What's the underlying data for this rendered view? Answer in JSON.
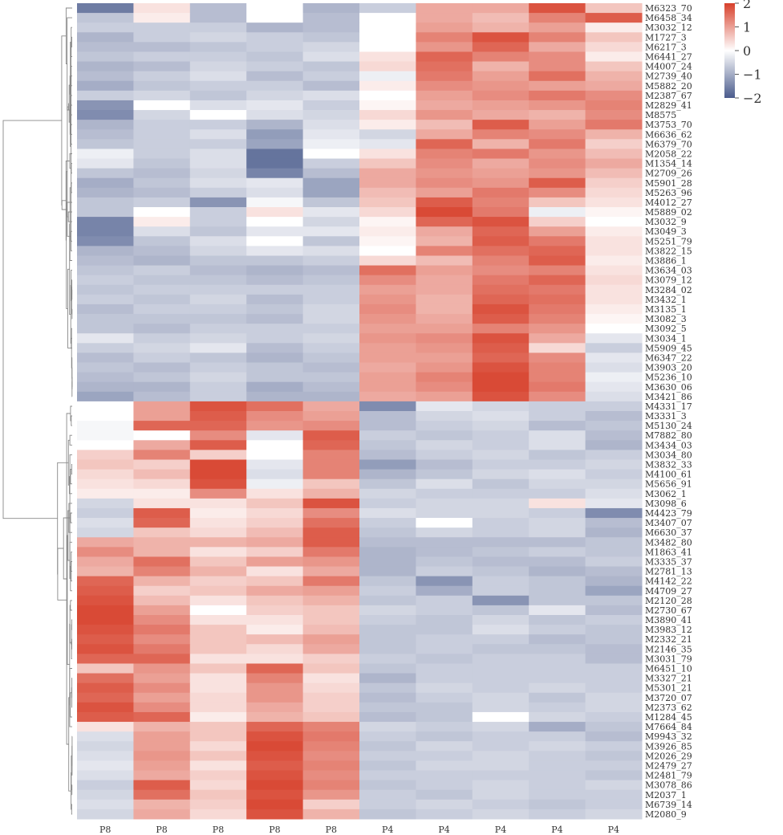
{
  "chart_data": {
    "type": "heatmap",
    "title": "",
    "columns": [
      "P8",
      "P8",
      "P8",
      "P8",
      "P8",
      "P4",
      "P4",
      "P4",
      "P4",
      "P4"
    ],
    "rows": [
      "M6323_70",
      "M6458_34",
      "M3032_12",
      "M1727_3",
      "M6217_3",
      "M6441_27",
      "M4007_24",
      "M2739_40",
      "M5882_20",
      "M2387_67",
      "M2829_41",
      "M8575",
      "M3753_70",
      "M6636_62",
      "M6379_70",
      "M2058_22",
      "M1354_14",
      "M2709_26",
      "M5901_28",
      "M5263_96",
      "M4012_27",
      "M5889_02",
      "M3032_9",
      "M3049_3",
      "M5251_79",
      "M3822_15",
      "M3886_1",
      "M3634_03",
      "M3079_12",
      "M3284_02",
      "M3432_1",
      "M3135_1",
      "M3082_3",
      "M3092_5",
      "M3034_1",
      "M5909_45",
      "M6347_22",
      "M3903_20",
      "M5236_10",
      "M3630_06",
      "M3421_86",
      "M4331_17",
      "M3331_3",
      "M5130_24",
      "M7882_80",
      "M3434_03",
      "M3034_80",
      "M3832_33",
      "M4100_61",
      "M5656_91",
      "M3062_1",
      "M3098_6",
      "M4423_79",
      "M3407_07",
      "M6630_37",
      "M3482_80",
      "M1863_41",
      "M3335_37",
      "M2781_13",
      "M4142_22",
      "M4709_27",
      "M2120_28",
      "M2730_67",
      "M3890_41",
      "M3983_12",
      "M2332_21",
      "M2146_35",
      "M3031_79",
      "M6451_10",
      "M3327_21",
      "M5301_21",
      "M3720_07",
      "M2373_62",
      "M1284_45",
      "M7664_84",
      "M9943_32",
      "M3926_85",
      "M2026_29",
      "M2479_27",
      "M2481_79",
      "M3078_86",
      "M2037_1",
      "M6739_14",
      "M2080_9"
    ],
    "values": [
      [
        -1.6,
        0.3,
        -0.8,
        0.0,
        -0.9,
        -0.6,
        0.9,
        0.9,
        1.8,
        0.6
      ],
      [
        -0.7,
        0.2,
        -0.8,
        0.0,
        -0.8,
        0.0,
        0.9,
        0.7,
        1.3,
        1.7
      ],
      [
        -0.6,
        -0.6,
        -0.6,
        -0.9,
        -0.8,
        0.0,
        1.0,
        0.8,
        1.0,
        0.2
      ],
      [
        -0.9,
        -0.6,
        -0.5,
        -0.6,
        -0.7,
        0.0,
        1.3,
        1.8,
        1.3,
        0.6
      ],
      [
        -0.8,
        -0.8,
        -0.7,
        -0.6,
        -0.5,
        0.0,
        1.1,
        1.6,
        0.9,
        0.4
      ],
      [
        -0.7,
        -0.6,
        -0.6,
        -0.7,
        -0.4,
        0.3,
        1.6,
        1.3,
        1.2,
        0.2
      ],
      [
        -0.9,
        -0.8,
        -0.5,
        -0.6,
        -0.7,
        0.4,
        1.5,
        0.8,
        1.2,
        0.6
      ],
      [
        -0.8,
        -0.6,
        -0.4,
        -0.8,
        -0.6,
        -0.2,
        1.4,
        1.0,
        1.5,
        0.8
      ],
      [
        -1.0,
        -0.7,
        -0.6,
        -0.6,
        -0.8,
        0.2,
        1.2,
        1.1,
        1.0,
        0.9
      ],
      [
        -0.6,
        -0.5,
        -0.7,
        -0.5,
        -0.4,
        0.0,
        1.0,
        1.2,
        1.4,
        1.2
      ],
      [
        -1.3,
        0.0,
        -0.4,
        -0.3,
        -0.6,
        0.1,
        0.9,
        1.0,
        1.1,
        1.3
      ],
      [
        -1.4,
        -0.5,
        0.0,
        -0.4,
        -0.5,
        0.4,
        1.1,
        0.9,
        0.8,
        1.2
      ],
      [
        -0.9,
        -0.6,
        -0.6,
        -0.9,
        -0.4,
        0.2,
        0.7,
        1.7,
        1.0,
        1.4
      ],
      [
        -0.8,
        -0.6,
        -0.4,
        -1.2,
        -0.3,
        -0.5,
        0.9,
        1.3,
        1.2,
        0.8
      ],
      [
        -0.7,
        -0.6,
        -0.6,
        -1.1,
        -0.2,
        -0.3,
        1.6,
        0.8,
        1.4,
        0.5
      ],
      [
        -0.2,
        -0.6,
        -0.4,
        -1.7,
        0.0,
        0.3,
        1.3,
        1.4,
        1.1,
        0.7
      ],
      [
        -0.3,
        -0.7,
        -0.4,
        -1.7,
        -0.6,
        0.6,
        1.2,
        0.9,
        1.2,
        0.9
      ],
      [
        -0.7,
        -0.8,
        -0.5,
        -1.5,
        -0.8,
        0.9,
        1.1,
        1.0,
        1.1,
        0.7
      ],
      [
        -1.0,
        -0.7,
        -0.4,
        -0.3,
        -1.1,
        0.9,
        1.2,
        1.1,
        1.7,
        0.5
      ],
      [
        -0.9,
        -0.8,
        -0.6,
        -0.4,
        -1.1,
        0.7,
        1.0,
        1.4,
        1.2,
        0.4
      ],
      [
        -0.7,
        -0.6,
        -1.3,
        -0.1,
        -0.7,
        0.6,
        1.7,
        1.3,
        0.6,
        0.3
      ],
      [
        -0.7,
        0.0,
        -0.6,
        0.3,
        -0.3,
        0.4,
        1.9,
        1.4,
        -0.2,
        0.1
      ],
      [
        -1.5,
        0.2,
        -0.6,
        0.0,
        -0.5,
        0.1,
        1.6,
        1.8,
        0.5,
        0.0
      ],
      [
        -1.5,
        -0.4,
        -0.7,
        -0.3,
        -0.3,
        0.2,
        0.9,
        1.6,
        1.0,
        0.2
      ],
      [
        -1.4,
        -0.7,
        -0.4,
        0.0,
        -0.7,
        0.1,
        0.8,
        1.7,
        1.4,
        0.3
      ],
      [
        -0.9,
        -0.8,
        -0.5,
        -0.3,
        -0.4,
        0.0,
        1.3,
        1.5,
        1.6,
        0.3
      ],
      [
        -0.8,
        -0.9,
        -0.7,
        -0.7,
        -0.6,
        0.4,
        0.7,
        1.3,
        1.7,
        0.2
      ],
      [
        -0.7,
        -0.6,
        -0.8,
        -0.9,
        -0.8,
        1.5,
        1.0,
        1.2,
        1.3,
        0.3
      ],
      [
        -0.6,
        -0.7,
        -0.7,
        -0.8,
        -0.7,
        1.2,
        0.9,
        1.4,
        1.6,
        0.4
      ],
      [
        -0.7,
        -0.6,
        -0.6,
        -0.6,
        -0.6,
        1.0,
        0.9,
        1.5,
        1.4,
        0.3
      ],
      [
        -0.6,
        -0.7,
        -0.5,
        -0.8,
        -0.6,
        1.1,
        0.8,
        1.6,
        1.5,
        0.3
      ],
      [
        -0.8,
        -0.6,
        -0.6,
        -0.7,
        -0.5,
        1.2,
        0.8,
        1.8,
        1.4,
        0.2
      ],
      [
        -0.7,
        -0.7,
        -0.7,
        -0.8,
        -0.5,
        1.1,
        0.9,
        1.7,
        1.3,
        0.1
      ],
      [
        -0.7,
        -0.8,
        -0.6,
        -0.6,
        -0.6,
        1.0,
        1.0,
        1.3,
        1.1,
        0.0
      ],
      [
        -0.3,
        -0.6,
        -0.5,
        -0.6,
        -0.5,
        1.1,
        1.2,
        1.8,
        0.9,
        -0.3
      ],
      [
        -0.6,
        -0.5,
        -0.3,
        -0.8,
        -0.6,
        1.0,
        1.1,
        1.7,
        0.4,
        -0.6
      ],
      [
        -0.8,
        -0.6,
        -0.7,
        -0.9,
        -0.7,
        1.0,
        1.0,
        1.6,
        1.2,
        -0.3
      ],
      [
        -0.7,
        -0.8,
        -0.6,
        -0.7,
        -0.8,
        0.9,
        1.1,
        1.8,
        1.3,
        -0.4
      ],
      [
        -0.8,
        -0.7,
        -0.5,
        -0.7,
        -0.7,
        1.0,
        1.3,
        1.9,
        1.3,
        -0.2
      ],
      [
        -0.9,
        -0.9,
        -0.6,
        -1.0,
        -0.8,
        1.0,
        1.2,
        1.9,
        1.4,
        -0.3
      ],
      [
        -1.1,
        -0.8,
        -0.6,
        -0.9,
        -0.9,
        0.9,
        1.0,
        1.8,
        1.2,
        -0.4
      ],
      [
        0.0,
        1.0,
        1.8,
        1.5,
        0.9,
        -1.4,
        -0.3,
        -0.5,
        -0.6,
        -0.6
      ],
      [
        0.0,
        1.0,
        1.7,
        1.2,
        1.0,
        -0.8,
        -0.5,
        -0.4,
        -0.6,
        -0.8
      ],
      [
        -0.1,
        1.6,
        1.6,
        1.1,
        1.2,
        -0.8,
        -0.6,
        -0.5,
        -0.8,
        -0.7
      ],
      [
        -0.1,
        0.0,
        1.2,
        -0.3,
        1.7,
        -0.6,
        -0.7,
        -0.6,
        -0.4,
        -0.8
      ],
      [
        0.0,
        0.9,
        1.7,
        0.0,
        1.6,
        -0.7,
        -0.5,
        -0.6,
        -0.4,
        -0.9
      ],
      [
        0.5,
        1.3,
        0.5,
        0.0,
        1.3,
        -0.8,
        -0.6,
        -0.5,
        -0.7,
        -0.6
      ],
      [
        0.6,
        0.5,
        1.9,
        -0.3,
        1.3,
        -1.2,
        -0.8,
        -0.6,
        -0.6,
        -0.5
      ],
      [
        0.4,
        0.7,
        1.9,
        -0.4,
        1.3,
        -0.9,
        -0.7,
        -0.5,
        -0.4,
        -0.6
      ],
      [
        0.3,
        0.4,
        1.8,
        -0.2,
        0.6,
        -0.7,
        -0.4,
        -0.7,
        -0.5,
        -0.5
      ],
      [
        0.2,
        0.2,
        1.2,
        0.3,
        0.8,
        -0.5,
        -0.6,
        -0.6,
        -0.6,
        -0.4
      ],
      [
        -0.5,
        0.3,
        0.3,
        0.6,
        1.8,
        -0.6,
        -0.5,
        -0.5,
        0.3,
        -0.3
      ],
      [
        -0.6,
        1.7,
        0.2,
        0.4,
        1.2,
        -0.4,
        -0.5,
        -0.5,
        -0.6,
        -1.4
      ],
      [
        -0.4,
        1.6,
        0.3,
        0.5,
        1.5,
        -0.6,
        0.0,
        -0.6,
        -0.5,
        -0.8
      ],
      [
        -0.5,
        0.6,
        0.4,
        0.7,
        1.7,
        -0.7,
        -0.5,
        -0.6,
        -0.5,
        -0.9
      ],
      [
        0.9,
        0.8,
        0.8,
        0.9,
        1.7,
        -0.8,
        -0.8,
        -0.8,
        -0.8,
        -0.7
      ],
      [
        1.2,
        0.8,
        0.3,
        0.5,
        1.4,
        -0.9,
        -0.8,
        -0.7,
        -0.6,
        -0.7
      ],
      [
        0.9,
        1.5,
        0.6,
        1.0,
        1.1,
        -0.9,
        -0.7,
        -0.8,
        -0.8,
        -0.6
      ],
      [
        0.8,
        1.3,
        0.8,
        0.3,
        0.9,
        -0.9,
        -0.6,
        -0.7,
        -0.9,
        -0.8
      ],
      [
        1.6,
        0.8,
        0.5,
        0.6,
        1.4,
        -0.7,
        -1.3,
        -0.6,
        -0.7,
        -0.9
      ],
      [
        1.7,
        0.5,
        0.6,
        0.9,
        1.0,
        -0.6,
        -1.0,
        -0.6,
        -0.7,
        -1.1
      ],
      [
        1.8,
        0.7,
        0.3,
        0.6,
        0.8,
        -0.7,
        -0.6,
        -1.3,
        -0.7,
        -0.7
      ],
      [
        1.9,
        1.0,
        0.0,
        0.5,
        0.6,
        -0.5,
        -0.6,
        -0.7,
        -0.3,
        -0.8
      ],
      [
        1.9,
        1.2,
        0.3,
        0.3,
        0.6,
        -0.6,
        -0.7,
        -0.5,
        -0.7,
        -0.6
      ],
      [
        1.8,
        1.4,
        0.6,
        0.2,
        0.7,
        -0.7,
        -0.7,
        -0.4,
        -0.6,
        -0.7
      ],
      [
        1.7,
        1.2,
        0.6,
        0.7,
        1.0,
        -0.7,
        -0.6,
        -0.6,
        -0.8,
        -0.7
      ],
      [
        1.8,
        1.4,
        0.6,
        0.4,
        0.9,
        -0.7,
        -0.6,
        -0.7,
        -0.7,
        -0.8
      ],
      [
        1.6,
        1.6,
        0.3,
        0.3,
        0.5,
        -0.6,
        -0.7,
        -0.6,
        -0.6,
        -0.8
      ],
      [
        0.6,
        1.1,
        0.6,
        1.6,
        0.6,
        -0.7,
        -0.6,
        -0.6,
        -0.6,
        -0.6
      ],
      [
        1.5,
        1.0,
        0.3,
        1.3,
        0.3,
        -0.9,
        -0.6,
        -0.6,
        -0.6,
        -0.6
      ],
      [
        1.7,
        1.2,
        0.3,
        1.1,
        0.4,
        -0.7,
        -0.5,
        -0.6,
        -0.5,
        -0.6
      ],
      [
        1.6,
        1.0,
        0.4,
        1.1,
        0.5,
        -0.8,
        -0.6,
        -0.5,
        -0.7,
        -0.5
      ],
      [
        1.8,
        1.2,
        0.4,
        0.9,
        0.5,
        -0.7,
        -0.7,
        -0.5,
        -0.6,
        -0.5
      ],
      [
        1.7,
        1.6,
        0.2,
        0.8,
        0.6,
        -0.8,
        -0.7,
        0.0,
        -0.5,
        -0.6
      ],
      [
        0.3,
        0.8,
        0.6,
        1.6,
        1.3,
        -0.5,
        -0.6,
        -0.5,
        -1.0,
        -0.7
      ],
      [
        -0.4,
        1.0,
        0.6,
        1.8,
        1.4,
        -0.6,
        -0.7,
        -0.6,
        -0.6,
        -0.8
      ],
      [
        -0.5,
        1.0,
        0.4,
        1.9,
        1.3,
        -0.7,
        -0.5,
        -0.6,
        -0.5,
        -0.6
      ],
      [
        -0.4,
        1.1,
        0.6,
        1.8,
        1.2,
        -0.6,
        -0.6,
        -0.5,
        -0.6,
        -0.7
      ],
      [
        -0.3,
        1.0,
        0.3,
        1.7,
        1.3,
        -0.7,
        -0.5,
        -0.5,
        -0.6,
        -0.6
      ],
      [
        -0.4,
        0.9,
        0.5,
        1.8,
        1.2,
        -0.6,
        -0.6,
        -0.6,
        -0.6,
        -0.7
      ],
      [
        -0.6,
        1.7,
        0.4,
        1.9,
        1.3,
        -0.7,
        -0.6,
        -0.5,
        -0.6,
        -0.5
      ],
      [
        -0.5,
        1.5,
        0.6,
        1.8,
        1.1,
        -0.6,
        -0.7,
        -0.5,
        -0.6,
        -0.6
      ],
      [
        -0.4,
        0.8,
        0.5,
        1.9,
        0.5,
        -0.6,
        -0.5,
        -0.6,
        -0.7,
        -0.6
      ],
      [
        -0.5,
        0.9,
        0.4,
        1.8,
        0.8,
        -0.7,
        -0.6,
        -0.5,
        -0.6,
        -0.5
      ]
    ],
    "color_scale": {
      "min": -2,
      "max": 2,
      "low_color": "#4a5b8c",
      "mid_color": "#ffffff",
      "high_color": "#d7402b",
      "legend_ticks": [
        2,
        1,
        0,
        -1,
        -2
      ],
      "legend_labels": [
        "2",
        "1",
        "0",
        "−1",
        "−2"
      ]
    },
    "legend_placement": "top-right",
    "row_dendrogram": "left",
    "grid": false
  }
}
